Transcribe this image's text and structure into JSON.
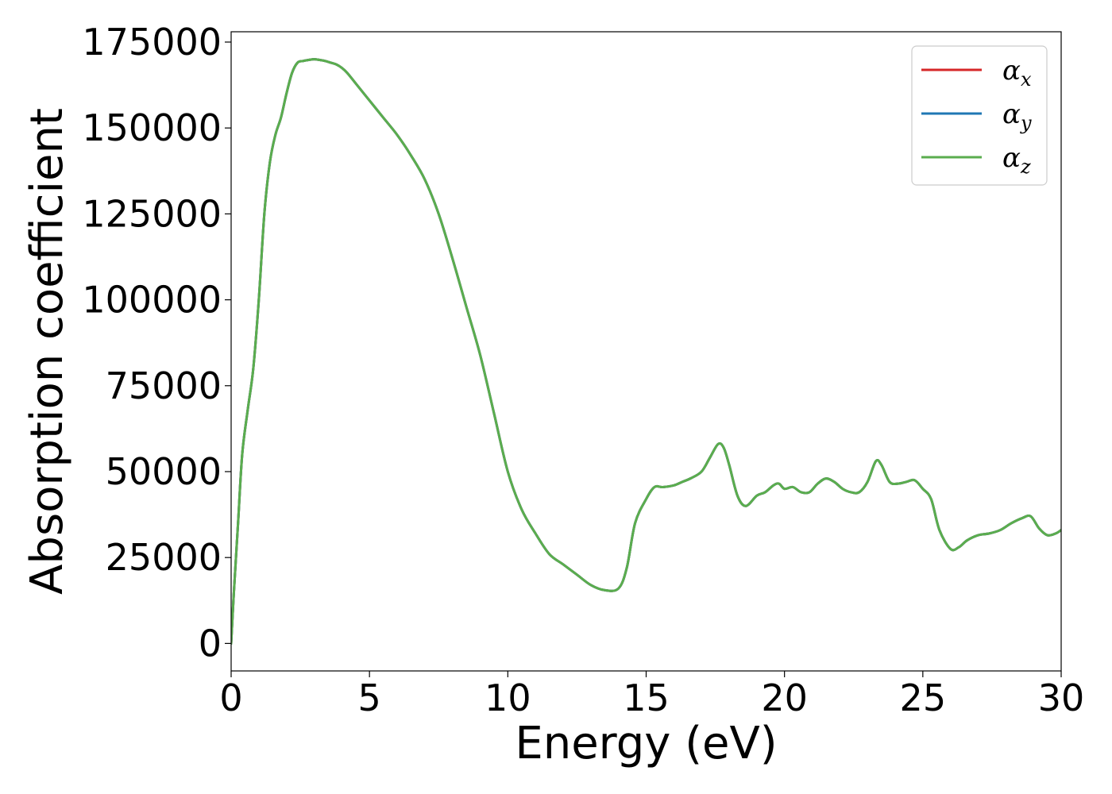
{
  "chart_data": {
    "type": "line",
    "title": "",
    "xlabel": "Energy (eV)",
    "ylabel": "Absorption coefficient",
    "xlim": [
      0,
      30
    ],
    "ylim": [
      -8000,
      178000
    ],
    "xticks": [
      0,
      5,
      10,
      15,
      20,
      25,
      30
    ],
    "yticks": [
      0,
      25000,
      50000,
      75000,
      100000,
      125000,
      150000,
      175000
    ],
    "grid": false,
    "legend_position": "top-right",
    "series": [
      {
        "name": "α",
        "subscript": "x",
        "color": "#d62728",
        "x": [
          0,
          0.1,
          0.25,
          0.4,
          0.6,
          0.8,
          1.0,
          1.2,
          1.4,
          1.6,
          1.8,
          2.0,
          2.2,
          2.4,
          2.6,
          2.8,
          3.0,
          3.2,
          3.4,
          3.6,
          3.8,
          4.0,
          4.2,
          4.5,
          5.0,
          5.5,
          6.0,
          6.5,
          7.0,
          7.5,
          8.0,
          8.5,
          9.0,
          9.5,
          10.0,
          10.5,
          11.0,
          11.5,
          12.0,
          12.5,
          13.0,
          13.5,
          14.0,
          14.3,
          14.6,
          15.0,
          15.3,
          15.6,
          16.0,
          16.3,
          16.6,
          17.0,
          17.3,
          17.6,
          17.8,
          18.0,
          18.3,
          18.6,
          19.0,
          19.3,
          19.6,
          19.8,
          20.0,
          20.3,
          20.6,
          20.9,
          21.2,
          21.5,
          21.8,
          22.1,
          22.4,
          22.7,
          23.0,
          23.3,
          23.5,
          23.8,
          24.1,
          24.4,
          24.7,
          25.0,
          25.3,
          25.6,
          26.0,
          26.3,
          26.6,
          27.0,
          27.4,
          27.8,
          28.2,
          28.6,
          28.9,
          29.2,
          29.5,
          29.8,
          30.0
        ],
        "values": [
          0,
          15000,
          35000,
          55000,
          68000,
          80000,
          100000,
          125000,
          140000,
          148000,
          153000,
          160000,
          166000,
          169000,
          169500,
          169800,
          170000,
          169800,
          169500,
          169000,
          168500,
          167500,
          166000,
          163000,
          158000,
          153000,
          148000,
          142000,
          135000,
          125000,
          112000,
          98000,
          84000,
          67000,
          50000,
          39000,
          32000,
          26000,
          23000,
          20000,
          17000,
          15500,
          16000,
          22000,
          35000,
          42000,
          45500,
          45500,
          46000,
          47000,
          48000,
          50000,
          54000,
          58000,
          57000,
          52000,
          43000,
          40000,
          43000,
          44000,
          46000,
          46500,
          45000,
          45500,
          44000,
          44000,
          46500,
          48000,
          47000,
          45000,
          44000,
          44000,
          47000,
          53000,
          52000,
          47000,
          46500,
          47000,
          47500,
          45000,
          42000,
          33000,
          27500,
          28000,
          30000,
          31500,
          32000,
          33000,
          35000,
          36500,
          37000,
          33500,
          31500,
          32000,
          33000
        ]
      },
      {
        "name": "α",
        "subscript": "y",
        "color": "#1f77b4",
        "x": [
          0,
          0.1,
          0.25,
          0.4,
          0.6,
          0.8,
          1.0,
          1.2,
          1.4,
          1.6,
          1.8,
          2.0,
          2.2,
          2.4,
          2.6,
          2.8,
          3.0,
          3.2,
          3.4,
          3.6,
          3.8,
          4.0,
          4.2,
          4.5,
          5.0,
          5.5,
          6.0,
          6.5,
          7.0,
          7.5,
          8.0,
          8.5,
          9.0,
          9.5,
          10.0,
          10.5,
          11.0,
          11.5,
          12.0,
          12.5,
          13.0,
          13.5,
          14.0,
          14.3,
          14.6,
          15.0,
          15.3,
          15.6,
          16.0,
          16.3,
          16.6,
          17.0,
          17.3,
          17.6,
          17.8,
          18.0,
          18.3,
          18.6,
          19.0,
          19.3,
          19.6,
          19.8,
          20.0,
          20.3,
          20.6,
          20.9,
          21.2,
          21.5,
          21.8,
          22.1,
          22.4,
          22.7,
          23.0,
          23.3,
          23.5,
          23.8,
          24.1,
          24.4,
          24.7,
          25.0,
          25.3,
          25.6,
          26.0,
          26.3,
          26.6,
          27.0,
          27.4,
          27.8,
          28.2,
          28.6,
          28.9,
          29.2,
          29.5,
          29.8,
          30.0
        ],
        "values": [
          0,
          15000,
          35000,
          55000,
          68000,
          80000,
          100000,
          125000,
          140000,
          148000,
          153000,
          160000,
          166000,
          169000,
          169500,
          169800,
          170000,
          169800,
          169500,
          169000,
          168500,
          167500,
          166000,
          163000,
          158000,
          153000,
          148000,
          142000,
          135000,
          125000,
          112000,
          98000,
          84000,
          67000,
          50000,
          39000,
          32000,
          26000,
          23000,
          20000,
          17000,
          15500,
          16000,
          22000,
          35000,
          42000,
          45500,
          45500,
          46000,
          47000,
          48000,
          50000,
          54000,
          58000,
          57000,
          52000,
          43000,
          40000,
          43000,
          44000,
          46000,
          46500,
          45000,
          45500,
          44000,
          44000,
          46500,
          48000,
          47000,
          45000,
          44000,
          44000,
          47000,
          53000,
          52000,
          47000,
          46500,
          47000,
          47500,
          45000,
          42000,
          33000,
          27500,
          28000,
          30000,
          31500,
          32000,
          33000,
          35000,
          36500,
          37000,
          33500,
          31500,
          32000,
          33000
        ]
      },
      {
        "name": "α",
        "subscript": "z",
        "color": "#5aad4e",
        "x": [
          0,
          0.1,
          0.25,
          0.4,
          0.6,
          0.8,
          1.0,
          1.2,
          1.4,
          1.6,
          1.8,
          2.0,
          2.2,
          2.4,
          2.6,
          2.8,
          3.0,
          3.2,
          3.4,
          3.6,
          3.8,
          4.0,
          4.2,
          4.5,
          5.0,
          5.5,
          6.0,
          6.5,
          7.0,
          7.5,
          8.0,
          8.5,
          9.0,
          9.5,
          10.0,
          10.5,
          11.0,
          11.5,
          12.0,
          12.5,
          13.0,
          13.5,
          14.0,
          14.3,
          14.6,
          15.0,
          15.3,
          15.6,
          16.0,
          16.3,
          16.6,
          17.0,
          17.3,
          17.6,
          17.8,
          18.0,
          18.3,
          18.6,
          19.0,
          19.3,
          19.6,
          19.8,
          20.0,
          20.3,
          20.6,
          20.9,
          21.2,
          21.5,
          21.8,
          22.1,
          22.4,
          22.7,
          23.0,
          23.3,
          23.5,
          23.8,
          24.1,
          24.4,
          24.7,
          25.0,
          25.3,
          25.6,
          26.0,
          26.3,
          26.6,
          27.0,
          27.4,
          27.8,
          28.2,
          28.6,
          28.9,
          29.2,
          29.5,
          29.8,
          30.0
        ],
        "values": [
          0,
          15000,
          35000,
          55000,
          68000,
          80000,
          100000,
          125000,
          140000,
          148000,
          153000,
          160000,
          166000,
          169000,
          169500,
          169800,
          170000,
          169800,
          169500,
          169000,
          168500,
          167500,
          166000,
          163000,
          158000,
          153000,
          148000,
          142000,
          135000,
          125000,
          112000,
          98000,
          84000,
          67000,
          50000,
          39000,
          32000,
          26000,
          23000,
          20000,
          17000,
          15500,
          16000,
          22000,
          35000,
          42000,
          45500,
          45500,
          46000,
          47000,
          48000,
          50000,
          54000,
          58000,
          57000,
          52000,
          43000,
          40000,
          43000,
          44000,
          46000,
          46500,
          45000,
          45500,
          44000,
          44000,
          46500,
          48000,
          47000,
          45000,
          44000,
          44000,
          47000,
          53000,
          52000,
          47000,
          46500,
          47000,
          47500,
          45000,
          42000,
          33000,
          27500,
          28000,
          30000,
          31500,
          32000,
          33000,
          35000,
          36500,
          37000,
          33500,
          31500,
          32000,
          33000
        ]
      }
    ]
  }
}
